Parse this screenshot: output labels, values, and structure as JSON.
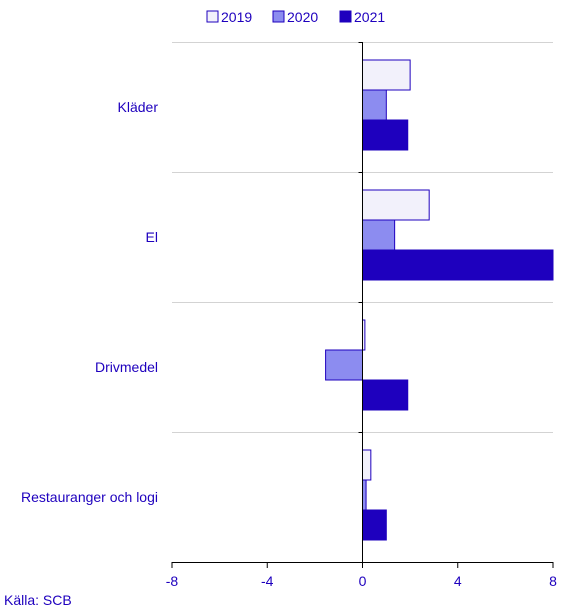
{
  "chart_data": {
    "type": "bar",
    "orientation": "horizontal",
    "categories": [
      "Kläder",
      "El",
      "Drivmedel",
      "Restauranger och logi"
    ],
    "series": [
      {
        "name": "2019",
        "values": [
          2.0,
          2.8,
          0.1,
          0.35
        ],
        "color": "#f2f1fb"
      },
      {
        "name": "2020",
        "values": [
          1.0,
          1.35,
          -1.55,
          0.15
        ],
        "color": "#8c8cf0"
      },
      {
        "name": "2021",
        "values": [
          1.9,
          8.0,
          1.9,
          1.0
        ],
        "color": "#1e00be"
      }
    ],
    "xlim": [
      -8,
      8
    ],
    "xticks": [
      -8,
      -4,
      0,
      4,
      8
    ],
    "grid": true,
    "legend_position": "top"
  },
  "source": "Källa: SCB",
  "colors": {
    "text": "#1e00be",
    "grid": "#d3d3d3",
    "axis": "#000000",
    "bar_outline": "#1e00be"
  }
}
